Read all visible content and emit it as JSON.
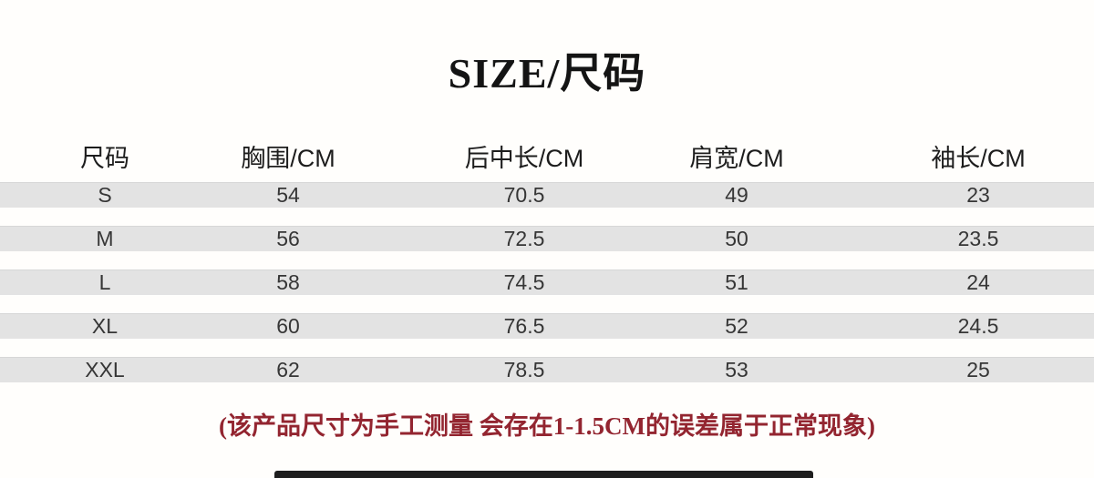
{
  "title": "SIZE/尺码",
  "table": {
    "headers": [
      "尺码",
      "胸围/CM",
      "后中长/CM",
      "肩宽/CM",
      "袖长/CM"
    ],
    "rows": [
      {
        "cells": [
          "S",
          "54",
          "70.5",
          "49",
          "23"
        ]
      },
      {
        "cells": [
          "M",
          "56",
          "72.5",
          "50",
          "23.5"
        ]
      },
      {
        "cells": [
          "L",
          "58",
          "74.5",
          "51",
          "24"
        ]
      },
      {
        "cells": [
          "XL",
          "60",
          "76.5",
          "52",
          "24.5"
        ]
      },
      {
        "cells": [
          "XXL",
          "62",
          "78.5",
          "53",
          "25"
        ]
      }
    ]
  },
  "note": "(该产品尺寸为手工测量 会存在1-1.5CM的误差属于正常现象)",
  "colors": {
    "background": "#fffefc",
    "row_band": "#e3e3e3",
    "title_text": "#141414",
    "body_text": "#363636",
    "note_text": "#932530",
    "bottom_bar": "#1e1e1e"
  }
}
